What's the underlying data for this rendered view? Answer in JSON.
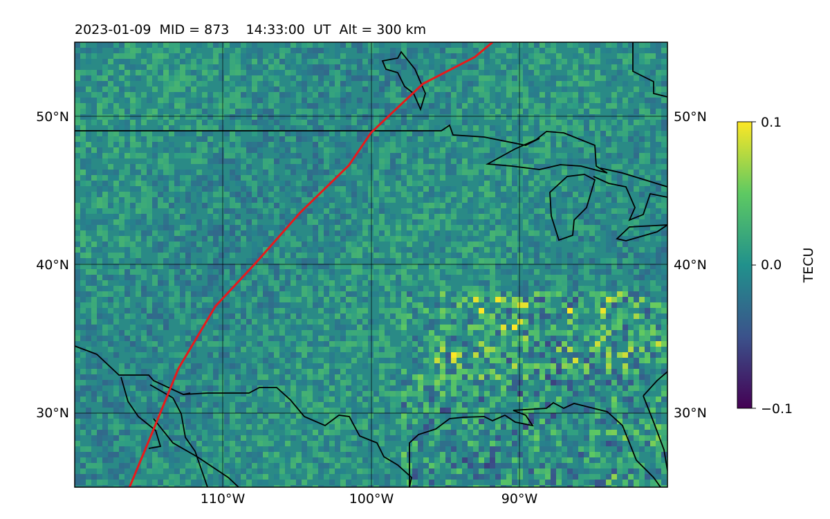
{
  "map": {
    "title": "2023-01-09  MID = 873    14:33:00  UT  Alt = 300 km",
    "lat_range": [
      25,
      55
    ],
    "lon_range": [
      -120,
      -80
    ],
    "lat_ticks": [
      {
        "value": 30,
        "label": "30°N"
      },
      {
        "value": 40,
        "label": "40°N"
      },
      {
        "value": 50,
        "label": "50°N"
      }
    ],
    "lon_ticks": [
      {
        "value": -110,
        "label": "110°W"
      },
      {
        "value": -100,
        "label": "100°W"
      },
      {
        "value": -90,
        "label": "90°W"
      }
    ],
    "colorbar": {
      "label": "TECU",
      "min": -0.1,
      "max": 0.1,
      "ticks": [
        {
          "value": 0.1,
          "label": "0.1"
        },
        {
          "value": 0.0,
          "label": "0.0"
        },
        {
          "value": -0.1,
          "label": "−0.1"
        }
      ],
      "colormap": "viridis",
      "colors": [
        "#440154",
        "#3b528b",
        "#21918c",
        "#5ec962",
        "#fde725"
      ]
    },
    "track": {
      "color": "#e8191b",
      "points_lonlat": [
        [
          -116.3,
          25
        ],
        [
          -114.8,
          28.6
        ],
        [
          -113.0,
          33
        ],
        [
          -110.5,
          37.2
        ],
        [
          -107.8,
          40.1
        ],
        [
          -104.8,
          43.5
        ],
        [
          -101.5,
          46.7
        ],
        [
          -100,
          48.9
        ],
        [
          -96.5,
          52.2
        ],
        [
          -93,
          54
        ],
        [
          -91.8,
          55
        ]
      ]
    },
    "grid": true
  }
}
